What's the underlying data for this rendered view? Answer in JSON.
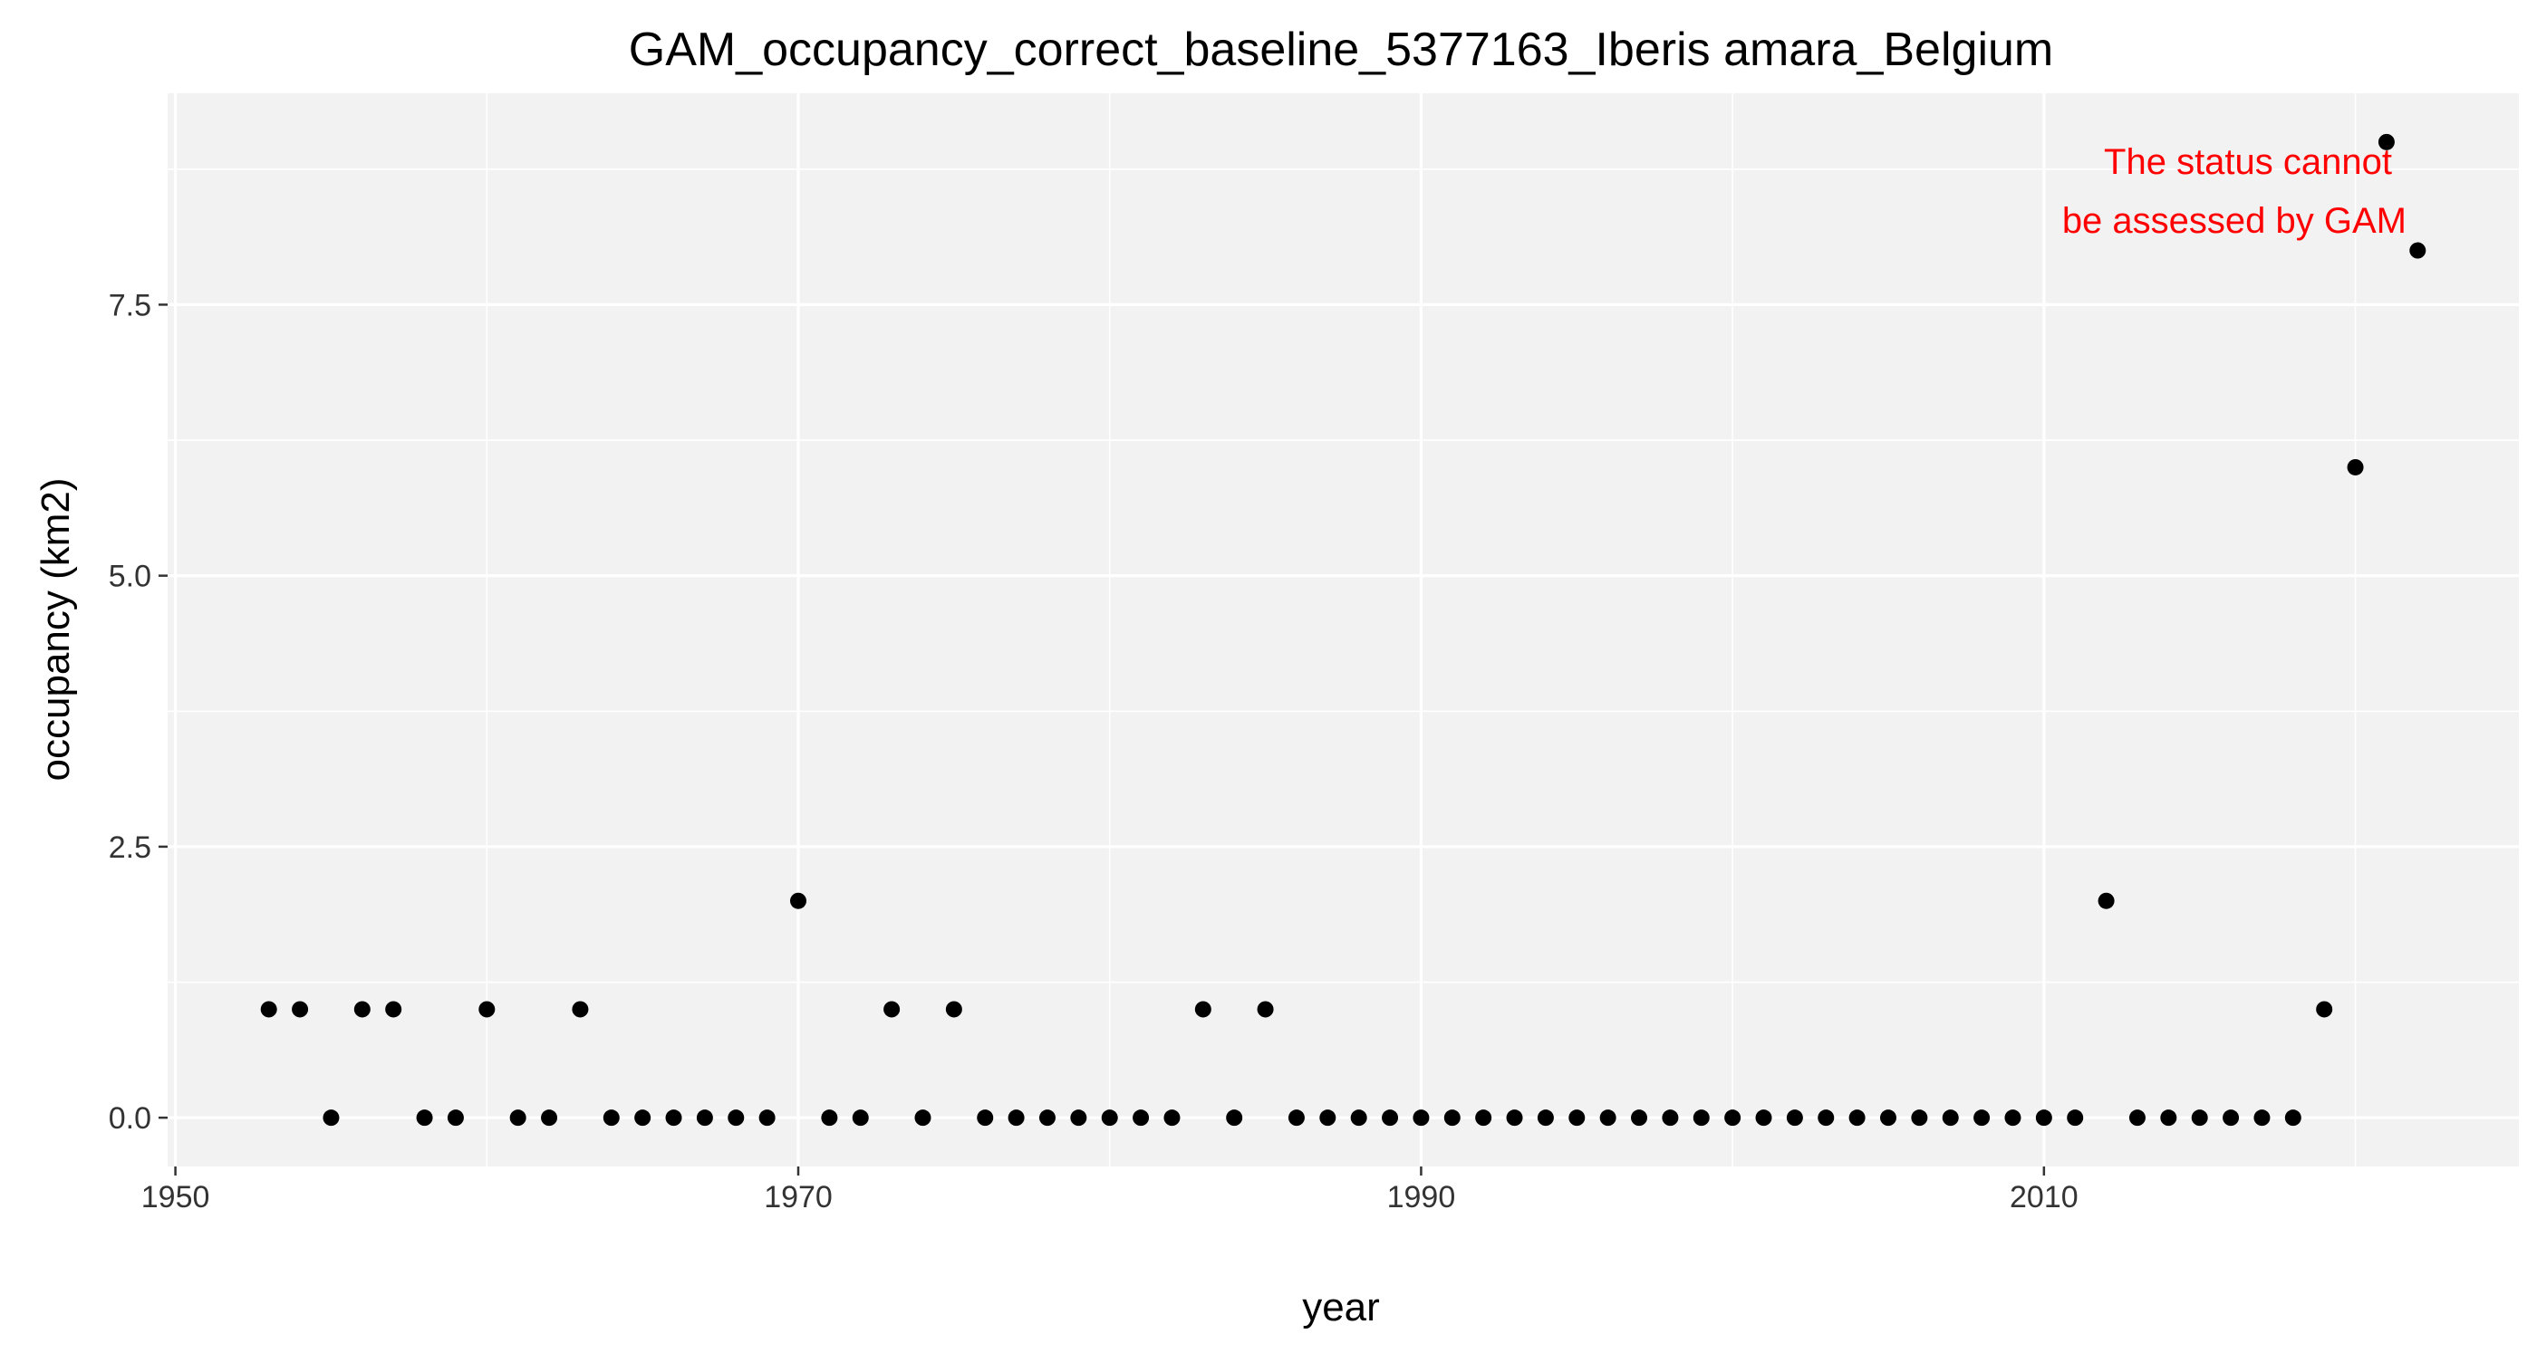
{
  "chart_data": {
    "type": "scatter",
    "title": "GAM_occupancy_correct_baseline_5377163_Iberis amara_Belgium",
    "xlabel": "year",
    "ylabel": "occupancy (km2)",
    "xlim": [
      1949.75,
      2025.25
    ],
    "ylim": [
      -0.45,
      9.45
    ],
    "x_ticks": [
      1950,
      1970,
      1990,
      2010
    ],
    "x_tick_labels": [
      "1950",
      "1970",
      "1990",
      "2010"
    ],
    "y_ticks": [
      0,
      2.5,
      5,
      7.5
    ],
    "y_tick_labels": [
      "0.0",
      "2.5",
      "5.0",
      "7.5"
    ],
    "x_minor_ticks": [
      1960,
      1980,
      2000,
      2020
    ],
    "y_minor_ticks": [
      1.25,
      3.75,
      6.25,
      8.75
    ],
    "grid": true,
    "background_color": "#f2f2f2",
    "point_color": "#000000",
    "annotation": {
      "lines": [
        "The status cannot",
        "be assessed by GAM"
      ],
      "color": "#ff0000",
      "position": "top-right"
    },
    "series": [
      {
        "name": "occupancy",
        "x": [
          1953,
          1954,
          1955,
          1956,
          1957,
          1958,
          1959,
          1960,
          1961,
          1962,
          1963,
          1964,
          1965,
          1966,
          1967,
          1968,
          1969,
          1970,
          1971,
          1972,
          1973,
          1974,
          1975,
          1976,
          1977,
          1978,
          1979,
          1980,
          1981,
          1982,
          1983,
          1984,
          1985,
          1986,
          1987,
          1988,
          1989,
          1990,
          1991,
          1992,
          1993,
          1994,
          1995,
          1996,
          1997,
          1998,
          1999,
          2000,
          2001,
          2002,
          2003,
          2004,
          2005,
          2006,
          2007,
          2008,
          2009,
          2010,
          2011,
          2012,
          2013,
          2014,
          2015,
          2016,
          2017,
          2018,
          2019,
          2020,
          2021,
          2022
        ],
        "y": [
          1,
          1,
          0,
          1,
          1,
          0,
          0,
          1,
          0,
          0,
          1,
          0,
          0,
          0,
          0,
          0,
          0,
          2,
          0,
          0,
          1,
          0,
          1,
          0,
          0,
          0,
          0,
          0,
          0,
          0,
          1,
          0,
          1,
          0,
          0,
          0,
          0,
          0,
          0,
          0,
          0,
          0,
          0,
          0,
          0,
          0,
          0,
          0,
          0,
          0,
          0,
          0,
          0,
          0,
          0,
          0,
          0,
          0,
          0,
          2,
          0,
          0,
          0,
          0,
          0,
          0,
          1,
          6,
          9,
          8
        ]
      }
    ]
  }
}
